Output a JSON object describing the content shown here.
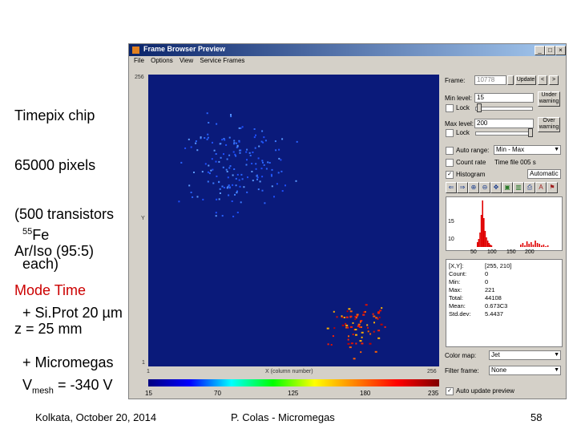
{
  "slide": {
    "lines": [
      "Timepix chip",
      "65000 pixels",
      "(500 transistors",
      "  each)",
      "  + Si.Prot 20 µm",
      "  + Micromegas"
    ],
    "source_sup": "55",
    "source": "Fe",
    "gas": "Ar/Iso (95:5)",
    "mode": "Mode Time",
    "z": "z = 25 mm",
    "vmesh_v": "V",
    "vmesh_sub": "mesh",
    "vmesh_val": " = -340 V",
    "footer_left": "Kolkata, October 20, 2014",
    "footer_center": "P. Colas - Micromegas",
    "footer_right": "58"
  },
  "window": {
    "title": "Frame Browser Preview",
    "menu": [
      "File",
      "Options",
      "View",
      "Service Frames"
    ],
    "controls": [
      "_",
      "□",
      "×"
    ]
  },
  "plot": {
    "y_top": "256",
    "y_mid": "Y",
    "y_bottom": "1",
    "x_left": "1",
    "x_label": "X (column number)",
    "x_right": "256",
    "colorbar_ticks": [
      "15",
      "70",
      "125",
      "180",
      "235"
    ],
    "bg_color": "#0a1a7a"
  },
  "panel": {
    "frame_label": "Frame:",
    "frame_value": "10778",
    "update_button": "Update",
    "prev_button": "<",
    "next_button": ">",
    "min_label": "Min level:",
    "min_value": "15",
    "under_button": "Under warning",
    "lock1": "Lock",
    "max_label": "Max level:",
    "max_value": "200",
    "over_button": "Over warning",
    "lock2": "Lock",
    "autorange": "Auto range:",
    "autorange_value": "Min - Max",
    "countrate": "Count rate",
    "timefile": "Time file 005 s",
    "histogram": "Histogram",
    "histogram_mode": "Automatic",
    "histo_ticks": [
      "50",
      "100",
      "150",
      "200"
    ],
    "histo_y": [
      "15",
      "10"
    ],
    "stats": [
      {
        "k": "[X,Y]:",
        "v": "[255, 210]"
      },
      {
        "k": "Count:",
        "v": "0"
      },
      {
        "k": "Min:",
        "v": "0"
      },
      {
        "k": "Max:",
        "v": "221"
      },
      {
        "k": "Total:",
        "v": "44108"
      },
      {
        "k": "Mean:",
        "v": "0.673C3"
      },
      {
        "k": "Std.dev:",
        "v": "5.4437"
      }
    ],
    "colormap_label": "Color map:",
    "colormap_value": "Jet",
    "filter_label": "Filter frame:",
    "filter_value": "None",
    "autoupdate": "Auto update preview"
  }
}
